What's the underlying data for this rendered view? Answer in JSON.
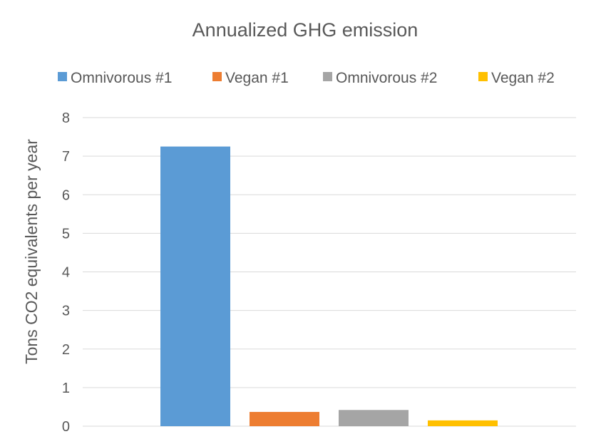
{
  "chart_data": {
    "type": "bar",
    "title": "Annualized GHG emission",
    "ylabel": "Tons CO2 equivalents per year",
    "xlabel": "",
    "ylim": [
      0,
      8
    ],
    "yticks": [
      0,
      1,
      2,
      3,
      4,
      5,
      6,
      7,
      8
    ],
    "grid": true,
    "legend_position": "top",
    "series": [
      {
        "name": "Omnivorous #1",
        "value": 7.25,
        "color": "#5B9BD5"
      },
      {
        "name": "Vegan #1",
        "value": 0.37,
        "color": "#ED7D31"
      },
      {
        "name": "Omnivorous #2",
        "value": 0.42,
        "color": "#A5A5A5"
      },
      {
        "name": "Vegan #2",
        "value": 0.15,
        "color": "#FFC000"
      }
    ]
  }
}
